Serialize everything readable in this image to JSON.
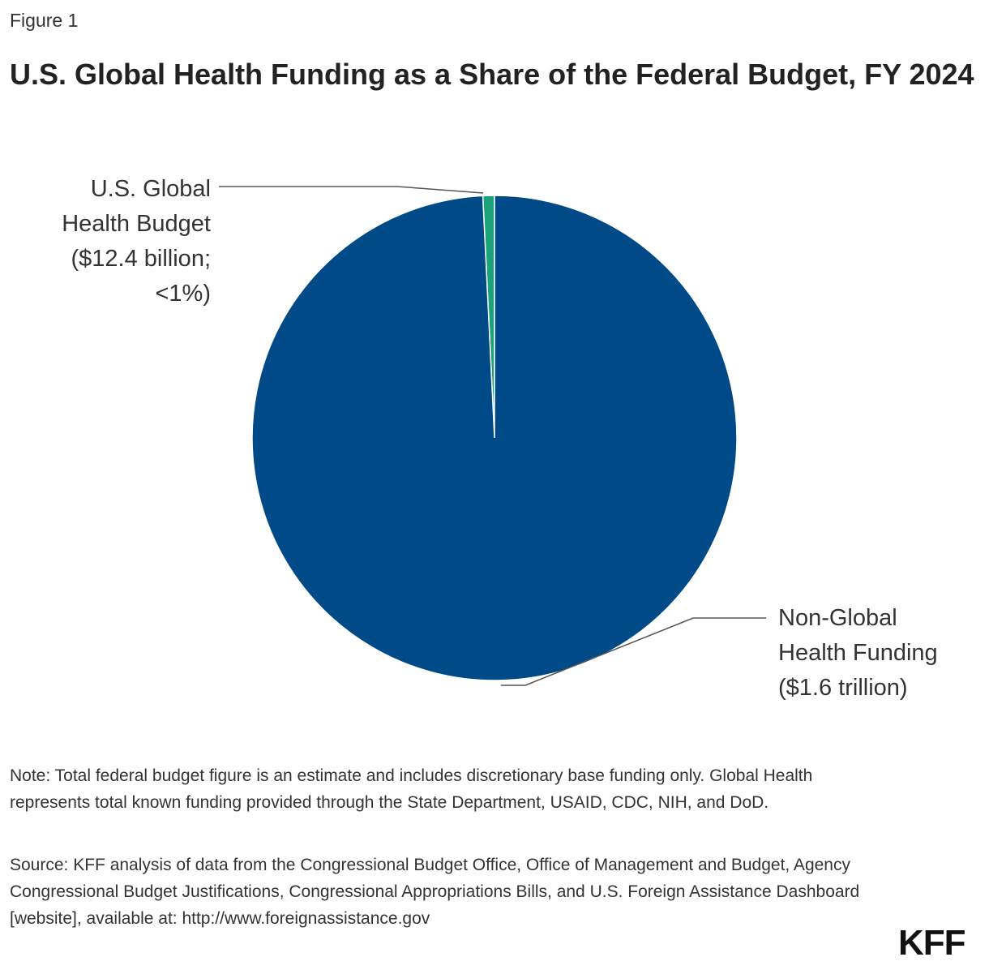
{
  "figure_label": "Figure 1",
  "title": "U.S. Global Health Funding as a Share of the Federal Budget, FY 2024",
  "chart_data": {
    "type": "pie",
    "title": "U.S. Global Health Funding as a Share of the Federal Budget, FY 2024",
    "slices": [
      {
        "name": "U.S. Global Health Budget",
        "value_billions": 12.4,
        "label_lines": [
          "U.S. Global",
          "Health Budget",
          "($12.4 billion;",
          "<1%)"
        ],
        "color": "#1aa37a"
      },
      {
        "name": "Non-Global Health Funding",
        "value_billions": 1600,
        "label_lines": [
          "Non-Global",
          "Health Funding",
          "($1.6 trillion)"
        ],
        "color": "#004a87"
      }
    ]
  },
  "note": "Note: Total federal budget figure is an estimate and includes discretionary base funding only. Global Health represents total known funding provided through the State Department, USAID, CDC, NIH, and DoD.",
  "source": "Source: KFF analysis of data from the Congressional Budget Office, Office of Management and Budget, Agency Congressional Budget Justifications, Congressional Appropriations Bills, and U.S. Foreign Assistance Dashboard [website], available at: http://www.foreignassistance.gov",
  "logo": "KFF",
  "colors": {
    "leader_line": "#555555"
  }
}
